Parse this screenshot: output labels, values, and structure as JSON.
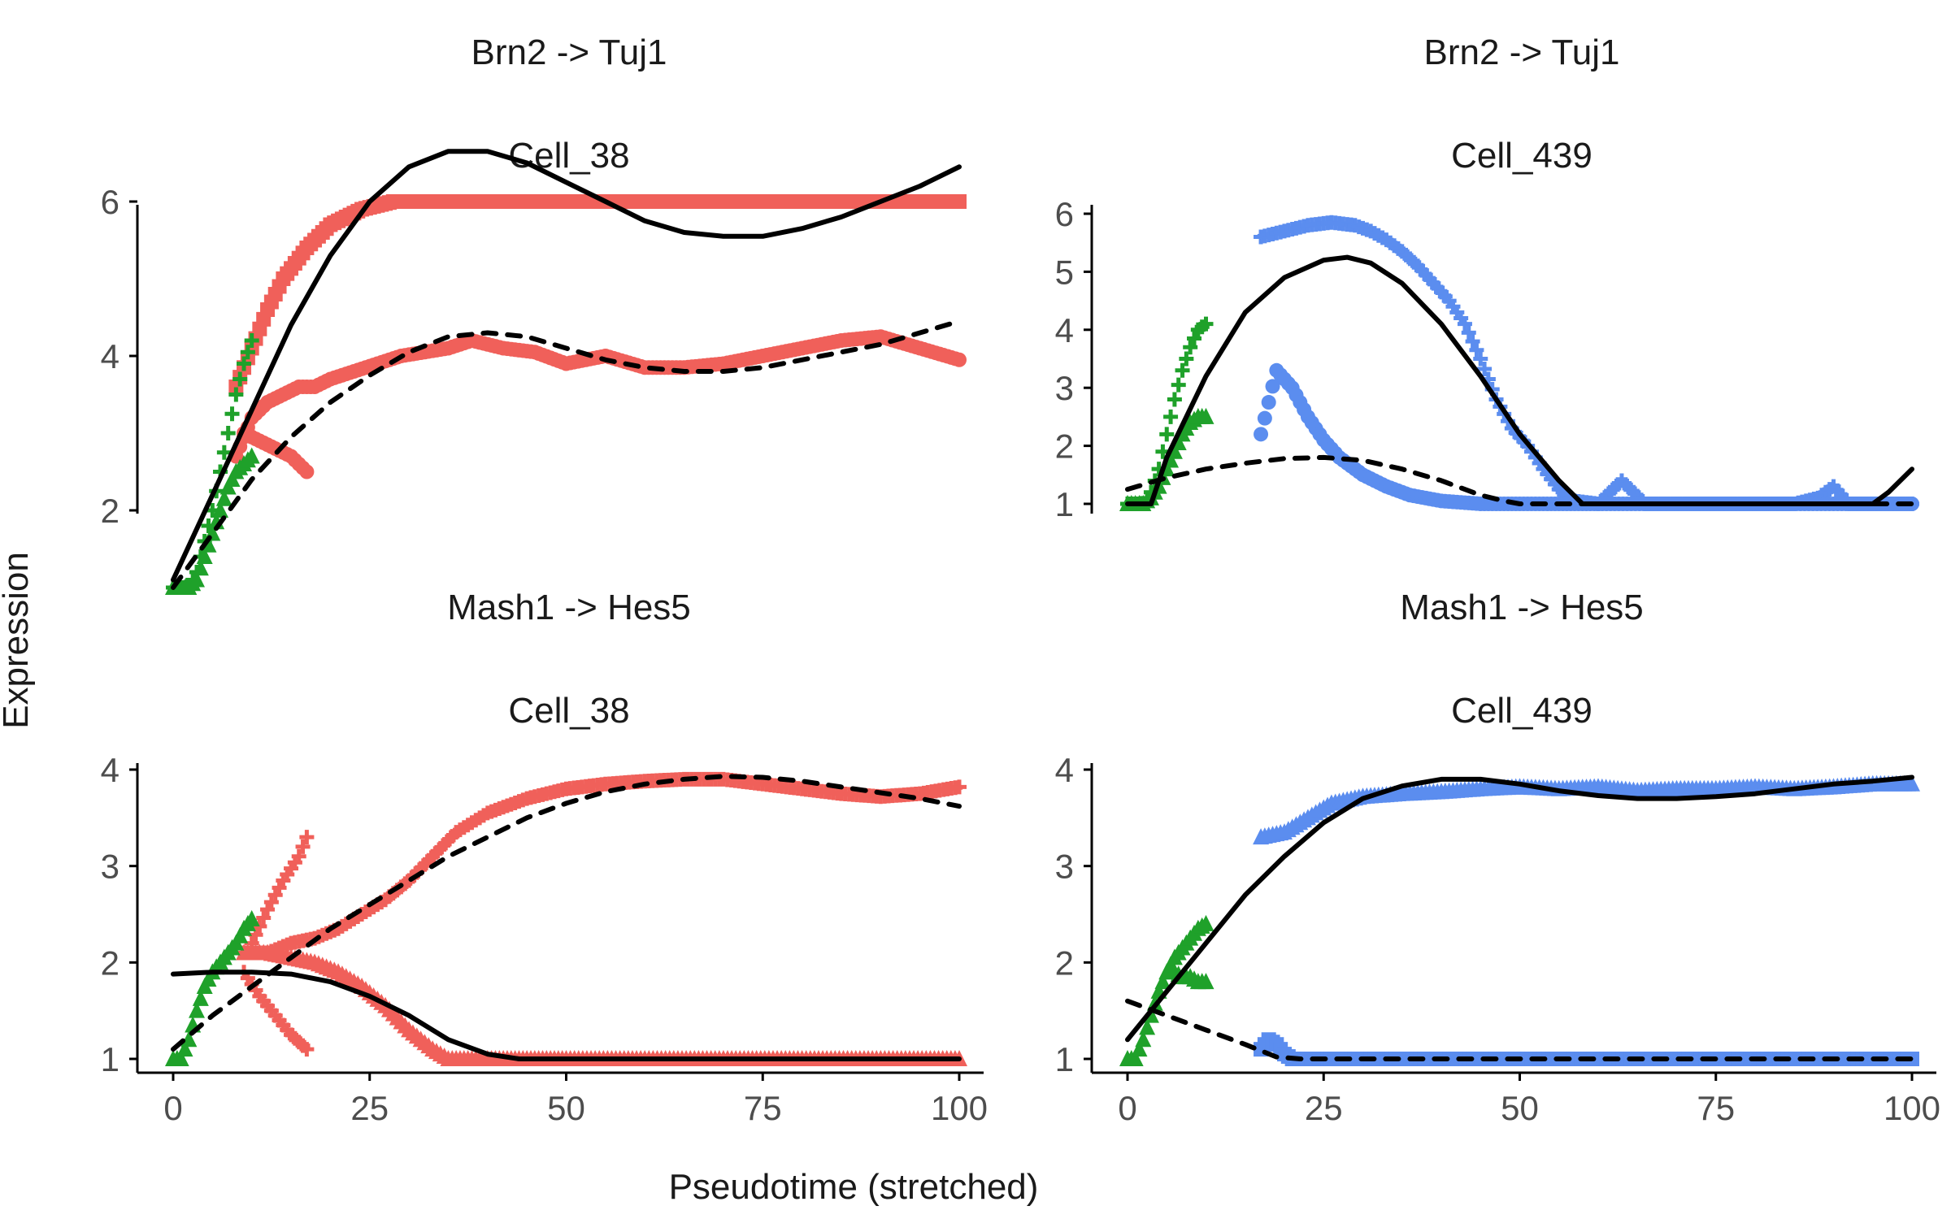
{
  "figure": {
    "xlabel": "Pseudotime (stretched)",
    "ylabel": "Expression"
  },
  "colors": {
    "red": "#F0605A",
    "green": "#1FA12A",
    "blue": "#5B8DEF",
    "fit": "#000000"
  },
  "chart_data": [
    {
      "type": "line",
      "title": "Brn2 -> Tuj1",
      "subtitle": "Cell_38",
      "xlim": [
        0,
        100
      ],
      "ylim": [
        0.85,
        7.0
      ],
      "xticks": [
        0,
        25,
        50,
        75,
        100
      ],
      "yticks": [
        2,
        4,
        6
      ],
      "show_x_axis": false,
      "series": [
        {
          "color": "red",
          "marker": "square",
          "x": [
            8,
            10,
            12,
            14,
            17,
            20,
            24,
            28,
            32,
            36,
            40,
            45,
            50,
            60,
            70,
            80,
            90,
            100
          ],
          "y": [
            3.6,
            4.1,
            4.6,
            5.0,
            5.4,
            5.7,
            5.9,
            6.0,
            6.0,
            6.0,
            6.0,
            6.0,
            6.0,
            6.0,
            6.0,
            6.0,
            6.0,
            6.0
          ]
        },
        {
          "color": "red",
          "marker": "circle",
          "x": [
            8,
            10,
            12,
            14,
            16,
            18,
            20,
            23,
            26,
            29,
            32,
            35,
            38,
            42,
            46,
            50,
            55,
            60,
            65,
            70,
            75,
            80,
            85,
            90,
            95,
            100
          ],
          "y": [
            2.7,
            3.2,
            3.4,
            3.5,
            3.6,
            3.6,
            3.7,
            3.8,
            3.9,
            4.0,
            4.05,
            4.1,
            4.2,
            4.1,
            4.05,
            3.9,
            4.0,
            3.85,
            3.85,
            3.9,
            4.0,
            4.1,
            4.2,
            4.25,
            4.1,
            3.95
          ]
        },
        {
          "color": "red",
          "marker": "circle",
          "x": [
            9,
            11,
            13,
            15,
            17
          ],
          "y": [
            3.0,
            2.9,
            2.8,
            2.7,
            2.5
          ]
        },
        {
          "color": "green",
          "marker": "plus",
          "x": [
            0,
            1,
            2,
            3,
            4,
            5,
            6,
            7,
            8,
            9,
            10
          ],
          "y": [
            1.0,
            1.0,
            1.0,
            1.2,
            1.6,
            2.0,
            2.5,
            3.0,
            3.5,
            3.9,
            4.2
          ]
        },
        {
          "color": "green",
          "marker": "triangle",
          "x": [
            0,
            1,
            2,
            3,
            4,
            5,
            6,
            7,
            8,
            9,
            10
          ],
          "y": [
            1.0,
            1.0,
            1.0,
            1.1,
            1.4,
            1.7,
            2.0,
            2.3,
            2.5,
            2.6,
            2.7
          ]
        }
      ],
      "fits": [
        {
          "style": "solid",
          "x": [
            0,
            5,
            10,
            15,
            20,
            25,
            30,
            35,
            40,
            45,
            50,
            55,
            60,
            65,
            70,
            75,
            80,
            85,
            90,
            95,
            100
          ],
          "y": [
            1.1,
            2.2,
            3.3,
            4.4,
            5.3,
            6.0,
            6.45,
            6.65,
            6.65,
            6.5,
            6.25,
            6.0,
            5.75,
            5.6,
            5.55,
            5.55,
            5.65,
            5.8,
            6.0,
            6.2,
            6.45
          ]
        },
        {
          "style": "dashed",
          "x": [
            0,
            5,
            10,
            15,
            20,
            25,
            30,
            35,
            40,
            45,
            50,
            55,
            60,
            65,
            70,
            75,
            80,
            85,
            90,
            95,
            100
          ],
          "y": [
            1.0,
            1.7,
            2.4,
            2.95,
            3.4,
            3.75,
            4.05,
            4.25,
            4.3,
            4.25,
            4.1,
            3.95,
            3.85,
            3.8,
            3.8,
            3.85,
            3.95,
            4.05,
            4.15,
            4.3,
            4.45
          ]
        }
      ]
    },
    {
      "type": "line",
      "title": "Brn2 -> Tuj1",
      "subtitle": "Cell_439",
      "xlim": [
        0,
        100
      ],
      "ylim": [
        0.75,
        6.3
      ],
      "xticks": [
        0,
        25,
        50,
        75,
        100
      ],
      "yticks": [
        1,
        2,
        3,
        4,
        5,
        6
      ],
      "show_x_axis": false,
      "series": [
        {
          "color": "blue",
          "marker": "plus",
          "x": [
            17,
            20,
            23,
            26,
            29,
            31,
            33,
            35,
            37,
            39,
            41,
            43,
            45,
            47,
            49,
            51,
            53,
            55,
            57,
            60,
            63,
            66,
            70,
            75,
            80,
            85,
            88,
            90,
            92,
            95,
            100
          ],
          "y": [
            5.6,
            5.7,
            5.8,
            5.85,
            5.8,
            5.7,
            5.55,
            5.35,
            5.1,
            4.8,
            4.5,
            4.1,
            3.5,
            2.8,
            2.3,
            2.0,
            1.6,
            1.25,
            1.05,
            1.0,
            1.4,
            1.0,
            1.0,
            1.0,
            1.0,
            1.0,
            1.1,
            1.3,
            1.0,
            1.0,
            1.0
          ]
        },
        {
          "color": "blue",
          "marker": "circle",
          "x": [
            17,
            19,
            21,
            23,
            25,
            27,
            30,
            33,
            36,
            40,
            45,
            50,
            55,
            60,
            70,
            80,
            90,
            100
          ],
          "y": [
            2.2,
            3.3,
            3.0,
            2.5,
            2.1,
            1.8,
            1.5,
            1.3,
            1.15,
            1.05,
            1.0,
            1.0,
            1.0,
            1.0,
            1.0,
            1.0,
            1.0,
            1.0
          ]
        },
        {
          "color": "green",
          "marker": "plus",
          "x": [
            0,
            1,
            2,
            3,
            4,
            5,
            6,
            7,
            8,
            9,
            10
          ],
          "y": [
            1.0,
            1.0,
            1.0,
            1.2,
            1.6,
            2.2,
            2.8,
            3.3,
            3.7,
            4.0,
            4.1
          ]
        },
        {
          "color": "green",
          "marker": "triangle",
          "x": [
            0,
            1,
            2,
            3,
            4,
            5,
            6,
            7,
            8,
            9,
            10
          ],
          "y": [
            1.0,
            1.0,
            1.0,
            1.1,
            1.3,
            1.6,
            1.9,
            2.2,
            2.4,
            2.5,
            2.5
          ]
        }
      ],
      "fits": [
        {
          "style": "solid",
          "x": [
            0,
            3,
            5,
            10,
            15,
            20,
            25,
            28,
            31,
            35,
            40,
            45,
            50,
            55,
            58,
            60,
            70,
            80,
            90,
            95,
            97,
            100
          ],
          "y": [
            1.0,
            1.0,
            1.8,
            3.2,
            4.3,
            4.9,
            5.2,
            5.25,
            5.15,
            4.8,
            4.1,
            3.2,
            2.2,
            1.4,
            1.0,
            1.0,
            1.0,
            1.0,
            1.0,
            1.0,
            1.2,
            1.6
          ]
        },
        {
          "style": "dashed",
          "x": [
            0,
            5,
            10,
            15,
            20,
            25,
            30,
            35,
            40,
            45,
            48,
            50,
            60,
            70,
            80,
            90,
            100
          ],
          "y": [
            1.25,
            1.45,
            1.6,
            1.7,
            1.78,
            1.8,
            1.75,
            1.6,
            1.4,
            1.15,
            1.05,
            1.0,
            1.0,
            1.0,
            1.0,
            1.0,
            1.0
          ]
        }
      ]
    },
    {
      "type": "line",
      "title": "Mash1 -> Hes5",
      "subtitle": "Cell_38",
      "xlim": [
        0,
        100
      ],
      "ylim": [
        0.85,
        4.1
      ],
      "xticks": [
        0,
        25,
        50,
        75,
        100
      ],
      "yticks": [
        1,
        2,
        3,
        4
      ],
      "show_x_axis": true,
      "series": [
        {
          "color": "red",
          "marker": "triangle",
          "x": [
            9,
            12,
            15,
            18,
            21,
            24,
            27,
            30,
            33,
            35,
            37,
            40,
            45,
            50,
            60,
            70,
            80,
            90,
            100
          ],
          "y": [
            2.1,
            2.1,
            2.05,
            2.0,
            1.9,
            1.75,
            1.55,
            1.3,
            1.1,
            1.0,
            1.0,
            1.0,
            1.0,
            1.0,
            1.0,
            1.0,
            1.0,
            1.0,
            1.0
          ]
        },
        {
          "color": "red",
          "marker": "plus",
          "x": [
            9,
            12,
            15,
            18,
            21,
            24,
            27,
            30,
            33,
            36,
            40,
            45,
            50,
            55,
            60,
            65,
            70,
            75,
            80,
            85,
            90,
            95,
            100
          ],
          "y": [
            2.1,
            2.1,
            2.2,
            2.25,
            2.35,
            2.5,
            2.65,
            2.85,
            3.1,
            3.35,
            3.55,
            3.7,
            3.8,
            3.85,
            3.88,
            3.9,
            3.9,
            3.85,
            3.8,
            3.75,
            3.72,
            3.75,
            3.82
          ]
        },
        {
          "color": "red",
          "marker": "plus",
          "x": [
            10,
            12,
            14,
            16,
            17
          ],
          "y": [
            2.2,
            2.55,
            2.85,
            3.1,
            3.3
          ]
        },
        {
          "color": "red",
          "marker": "plus",
          "x": [
            9,
            11,
            13,
            15,
            17
          ],
          "y": [
            1.9,
            1.65,
            1.45,
            1.25,
            1.1
          ]
        },
        {
          "color": "green",
          "marker": "triangle",
          "x": [
            0,
            1,
            2,
            3,
            4,
            5,
            6,
            7,
            8,
            9,
            10
          ],
          "y": [
            1.0,
            1.0,
            1.2,
            1.5,
            1.75,
            1.9,
            2.0,
            2.1,
            2.2,
            2.35,
            2.45
          ]
        }
      ],
      "fits": [
        {
          "style": "solid",
          "x": [
            0,
            5,
            10,
            15,
            20,
            25,
            30,
            35,
            40,
            44,
            50,
            60,
            70,
            80,
            90,
            100
          ],
          "y": [
            1.88,
            1.9,
            1.9,
            1.88,
            1.8,
            1.65,
            1.45,
            1.2,
            1.05,
            1.0,
            1.0,
            1.0,
            1.0,
            1.0,
            1.0,
            1.0
          ]
        },
        {
          "style": "dashed",
          "x": [
            0,
            5,
            10,
            15,
            20,
            25,
            30,
            35,
            40,
            45,
            50,
            55,
            60,
            65,
            70,
            75,
            80,
            85,
            90,
            95,
            100
          ],
          "y": [
            1.1,
            1.45,
            1.75,
            2.05,
            2.35,
            2.6,
            2.85,
            3.1,
            3.3,
            3.5,
            3.65,
            3.77,
            3.85,
            3.9,
            3.93,
            3.92,
            3.88,
            3.82,
            3.76,
            3.7,
            3.62
          ]
        }
      ]
    },
    {
      "type": "line",
      "title": "Mash1 -> Hes5",
      "subtitle": "Cell_439",
      "xlim": [
        0,
        100
      ],
      "ylim": [
        0.85,
        4.1
      ],
      "xticks": [
        0,
        25,
        50,
        75,
        100
      ],
      "yticks": [
        1,
        2,
        3,
        4
      ],
      "show_x_axis": true,
      "series": [
        {
          "color": "blue",
          "marker": "triangle",
          "x": [
            17,
            20,
            23,
            26,
            30,
            35,
            40,
            45,
            50,
            55,
            60,
            65,
            70,
            75,
            80,
            85,
            90,
            95,
            100
          ],
          "y": [
            3.3,
            3.35,
            3.5,
            3.65,
            3.72,
            3.75,
            3.77,
            3.8,
            3.82,
            3.8,
            3.82,
            3.78,
            3.8,
            3.8,
            3.82,
            3.8,
            3.82,
            3.85,
            3.85
          ]
        },
        {
          "color": "blue",
          "marker": "square",
          "x": [
            17,
            18,
            19,
            20,
            21,
            25,
            30,
            40,
            50,
            60,
            70,
            80,
            90,
            100
          ],
          "y": [
            1.1,
            1.2,
            1.15,
            1.05,
            1.0,
            1.0,
            1.0,
            1.0,
            1.0,
            1.0,
            1.0,
            1.0,
            1.0,
            1.0
          ]
        },
        {
          "color": "green",
          "marker": "triangle",
          "x": [
            0,
            1,
            2,
            3,
            4,
            5,
            6,
            7,
            8,
            9,
            10
          ],
          "y": [
            1.0,
            1.0,
            1.2,
            1.45,
            1.7,
            1.9,
            2.05,
            2.15,
            2.25,
            2.35,
            2.4
          ]
        },
        {
          "color": "green",
          "marker": "triangle",
          "x": [
            6,
            7,
            8,
            9,
            10
          ],
          "y": [
            1.9,
            1.85,
            1.85,
            1.8,
            1.8
          ]
        }
      ],
      "fits": [
        {
          "style": "solid",
          "x": [
            0,
            5,
            10,
            15,
            20,
            25,
            30,
            35,
            40,
            45,
            50,
            55,
            60,
            65,
            70,
            75,
            80,
            85,
            90,
            95,
            100
          ],
          "y": [
            1.2,
            1.7,
            2.2,
            2.7,
            3.1,
            3.45,
            3.7,
            3.83,
            3.9,
            3.9,
            3.85,
            3.78,
            3.73,
            3.7,
            3.7,
            3.72,
            3.75,
            3.8,
            3.85,
            3.88,
            3.92
          ]
        },
        {
          "style": "dashed",
          "x": [
            0,
            5,
            10,
            15,
            19,
            22,
            30,
            40,
            50,
            60,
            70,
            80,
            90,
            100
          ],
          "y": [
            1.6,
            1.45,
            1.3,
            1.15,
            1.02,
            1.0,
            1.0,
            1.0,
            1.0,
            1.0,
            1.0,
            1.0,
            1.0,
            1.0
          ]
        }
      ]
    }
  ]
}
